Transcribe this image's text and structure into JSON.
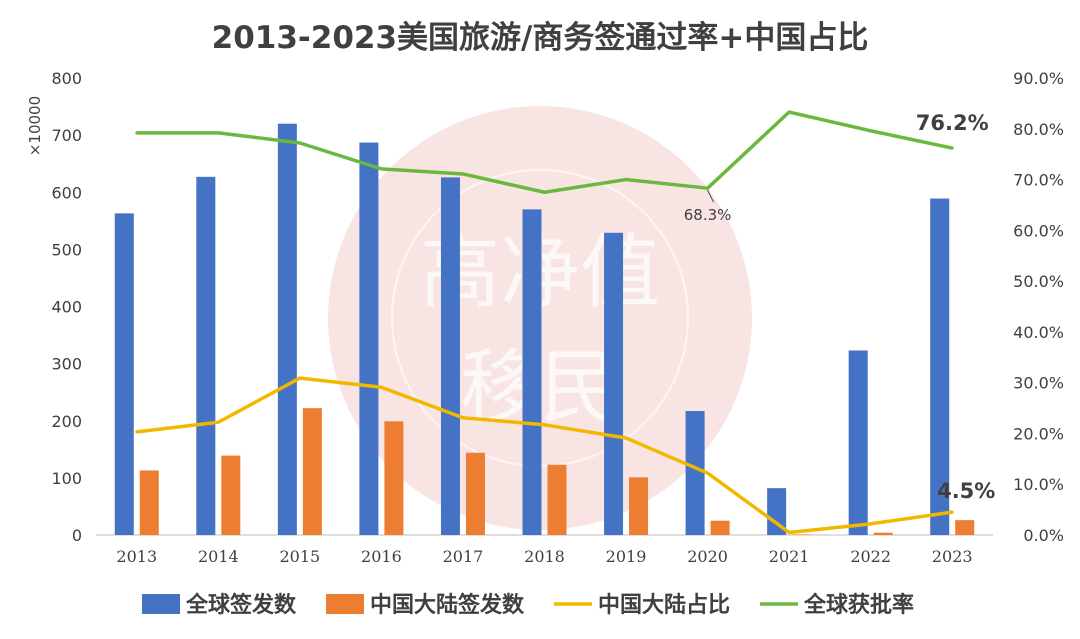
{
  "chart_data": {
    "type": "bar",
    "title": "2013-2023美国旅游/商务签通过率+中国占比",
    "categories": [
      "2013",
      "2014",
      "2015",
      "2016",
      "2017",
      "2018",
      "2019",
      "2020",
      "2021",
      "2022",
      "2023"
    ],
    "left_axis": {
      "unit_label": "×10000",
      "ylim": [
        0,
        800
      ],
      "ticks": [
        "0",
        "100",
        "200",
        "300",
        "400",
        "500",
        "600",
        "700",
        "800"
      ]
    },
    "right_axis": {
      "ylim": [
        0,
        0.9
      ],
      "ticks": [
        "0.0%",
        "10.0%",
        "20.0%",
        "30.0%",
        "40.0%",
        "50.0%",
        "60.0%",
        "70.0%",
        "80.0%",
        "90.0%"
      ]
    },
    "series": [
      {
        "name": "全球签发数",
        "type": "bar",
        "axis": "left",
        "color": "#4472C4",
        "values": [
          563,
          627,
          720,
          687,
          626,
          570,
          529,
          217,
          82,
          323,
          589
        ]
      },
      {
        "name": "中国大陆签发数",
        "type": "bar",
        "axis": "left",
        "color": "#ED7D31",
        "values": [
          113,
          139,
          222,
          199,
          144,
          123,
          101,
          25,
          1,
          4,
          26
        ]
      },
      {
        "name": "中国大陆占比",
        "type": "line",
        "axis": "right",
        "color": "#F2B800",
        "values": [
          0.203,
          0.222,
          0.309,
          0.291,
          0.231,
          0.217,
          0.191,
          0.122,
          0.005,
          0.022,
          0.045
        ]
      },
      {
        "name": "全球获批率",
        "type": "line",
        "axis": "right",
        "color": "#6BB83E",
        "values": [
          0.792,
          0.792,
          0.772,
          0.721,
          0.711,
          0.675,
          0.7,
          0.683,
          0.833,
          0.796,
          0.762
        ]
      }
    ],
    "annotations": [
      {
        "series": 3,
        "index": 7,
        "text": "68.3%"
      },
      {
        "series": 3,
        "index": 10,
        "text": "76.2%"
      },
      {
        "series": 2,
        "index": 10,
        "text": "4.5%"
      }
    ],
    "legend": "bottom",
    "grid": false
  },
  "watermark": {
    "line1": "高净值",
    "line2": "移民"
  }
}
